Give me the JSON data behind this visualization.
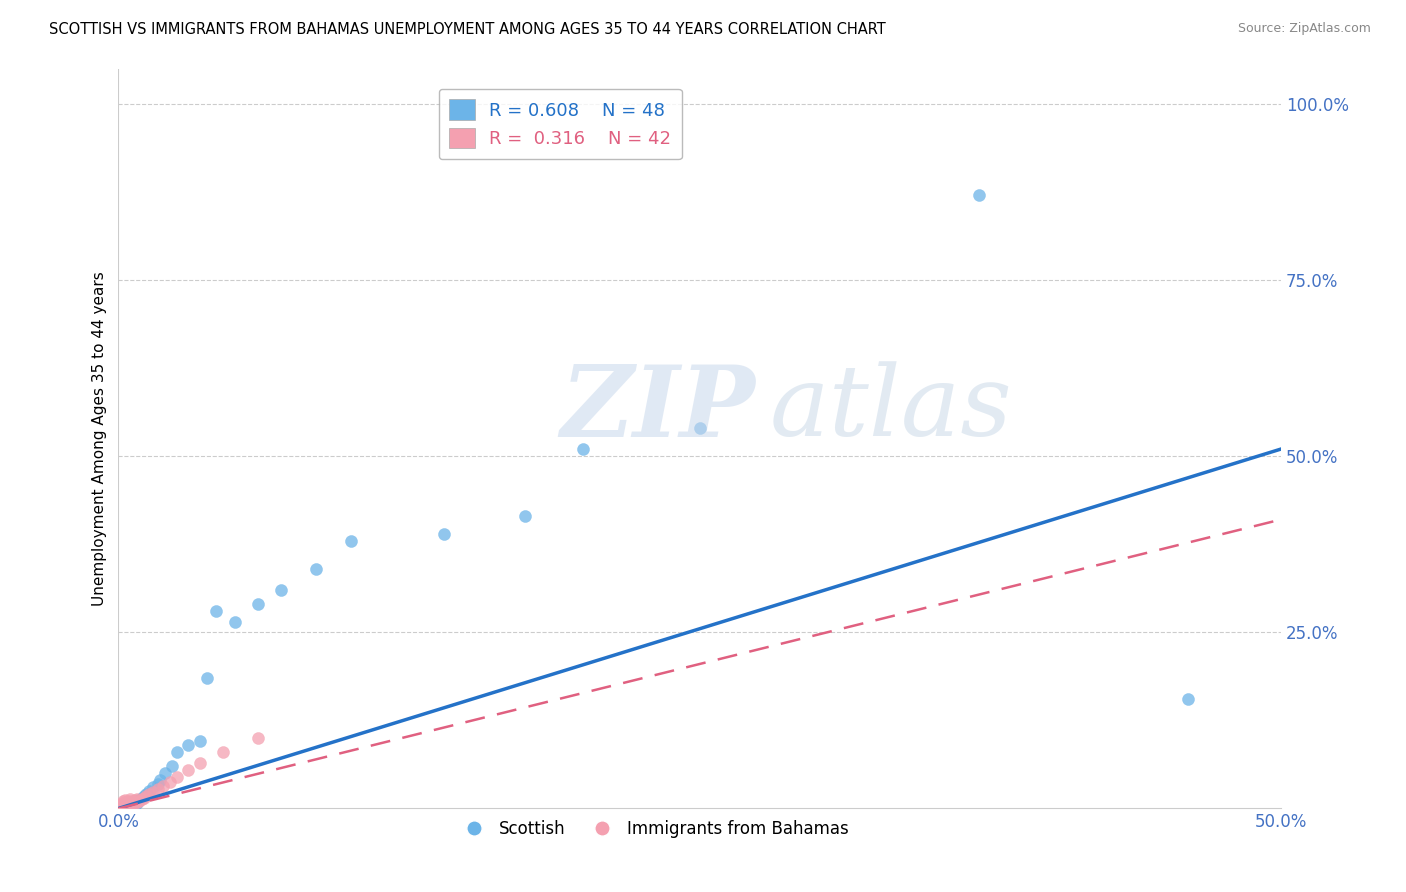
{
  "title": "SCOTTISH VS IMMIGRANTS FROM BAHAMAS UNEMPLOYMENT AMONG AGES 35 TO 44 YEARS CORRELATION CHART",
  "source": "Source: ZipAtlas.com",
  "ylabel": "Unemployment Among Ages 35 to 44 years",
  "xlim": [
    0.0,
    0.5
  ],
  "ylim": [
    0.0,
    1.05
  ],
  "ytick_vals": [
    0.0,
    0.25,
    0.5,
    0.75,
    1.0
  ],
  "ytick_labels": [
    "",
    "25.0%",
    "50.0%",
    "75.0%",
    "100.0%"
  ],
  "xtick_vals": [
    0.0,
    0.5
  ],
  "xtick_labels": [
    "0.0%",
    "50.0%"
  ],
  "legend_r1": "0.608",
  "legend_n1": "48",
  "legend_r2": "0.316",
  "legend_n2": "42",
  "scottish_color": "#6cb4e8",
  "bahamas_color": "#f4a0b0",
  "scottish_line_color": "#2472c8",
  "bahamas_line_color": "#e06080",
  "scottish_line_slope": 1.02,
  "scottish_line_intercept": 0.0,
  "bahamas_line_slope": 0.82,
  "bahamas_line_intercept": 0.0,
  "background_color": "#ffffff",
  "scottish_x": [
    0.001,
    0.001,
    0.001,
    0.002,
    0.002,
    0.002,
    0.002,
    0.003,
    0.003,
    0.003,
    0.003,
    0.004,
    0.004,
    0.004,
    0.005,
    0.005,
    0.005,
    0.006,
    0.006,
    0.007,
    0.007,
    0.008,
    0.009,
    0.01,
    0.011,
    0.012,
    0.013,
    0.015,
    0.017,
    0.018,
    0.02,
    0.023,
    0.025,
    0.03,
    0.035,
    0.038,
    0.042,
    0.05,
    0.06,
    0.07,
    0.085,
    0.1,
    0.14,
    0.175,
    0.2,
    0.25,
    0.37,
    0.46
  ],
  "scottish_y": [
    0.001,
    0.002,
    0.003,
    0.001,
    0.003,
    0.004,
    0.005,
    0.002,
    0.004,
    0.006,
    0.007,
    0.003,
    0.005,
    0.008,
    0.003,
    0.006,
    0.009,
    0.004,
    0.007,
    0.005,
    0.01,
    0.008,
    0.012,
    0.015,
    0.018,
    0.02,
    0.025,
    0.03,
    0.035,
    0.04,
    0.05,
    0.06,
    0.08,
    0.09,
    0.095,
    0.185,
    0.28,
    0.265,
    0.29,
    0.31,
    0.34,
    0.38,
    0.39,
    0.415,
    0.51,
    0.54,
    0.87,
    0.155
  ],
  "bahamas_x": [
    0.001,
    0.001,
    0.001,
    0.001,
    0.001,
    0.001,
    0.001,
    0.002,
    0.002,
    0.002,
    0.002,
    0.002,
    0.003,
    0.003,
    0.003,
    0.003,
    0.004,
    0.004,
    0.004,
    0.005,
    0.005,
    0.005,
    0.006,
    0.006,
    0.007,
    0.007,
    0.008,
    0.008,
    0.009,
    0.01,
    0.011,
    0.012,
    0.013,
    0.015,
    0.017,
    0.019,
    0.022,
    0.025,
    0.03,
    0.035,
    0.045,
    0.06
  ],
  "bahamas_y": [
    0.001,
    0.002,
    0.003,
    0.004,
    0.005,
    0.006,
    0.007,
    0.002,
    0.004,
    0.006,
    0.008,
    0.01,
    0.003,
    0.006,
    0.009,
    0.012,
    0.005,
    0.008,
    0.011,
    0.006,
    0.009,
    0.013,
    0.007,
    0.01,
    0.008,
    0.012,
    0.009,
    0.014,
    0.011,
    0.013,
    0.015,
    0.018,
    0.02,
    0.023,
    0.027,
    0.032,
    0.038,
    0.044,
    0.055,
    0.065,
    0.08,
    0.1
  ]
}
